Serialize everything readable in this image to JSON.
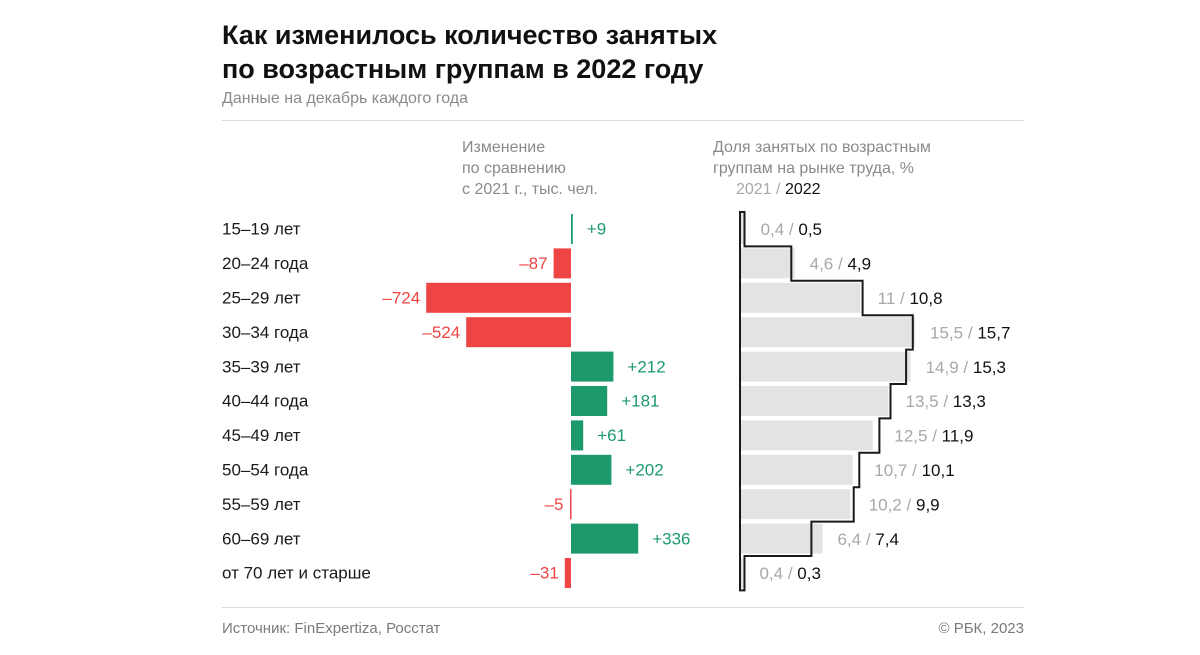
{
  "header": {
    "title_line1": "Как изменилось количество занятых",
    "title_line2": "по возрастным группам в 2022 году",
    "subtitle": "Данные на декабрь каждого года"
  },
  "columns": {
    "change_line1": "Изменение",
    "change_line2": "по сравнению",
    "change_line3": "с 2021 г., тыс. чел.",
    "share_line1": "Доля занятых по возрастным",
    "share_line2": "группам на рынке труда, %",
    "year_2021": "2021",
    "year_sep": " / ",
    "year_2022": "2022"
  },
  "footer": {
    "source": "Источник: FinExpertiza, Росстат",
    "copyright": "© РБК, 2023"
  },
  "colors": {
    "positive": "#1d9a6c",
    "negative": "#ef4444",
    "share_2022_fill": "#e3e3e3",
    "share_2021_line": "#1a1a1a",
    "label_2021": "#a8a8a8"
  },
  "chart_data": [
    {
      "type": "bar",
      "orientation": "horizontal",
      "categories": [
        "15–19 лет",
        "20–24 года",
        "25–29 лет",
        "30–34 года",
        "35–39 лет",
        "40–44 года",
        "45–49 лет",
        "50–54 года",
        "55–59 лет",
        "60–69 лет",
        "от 70 лет и старше"
      ],
      "series": [
        {
          "values": [
            9,
            -87,
            -724,
            -524,
            212,
            181,
            61,
            202,
            -5,
            336,
            -31
          ]
        }
      ],
      "labels": [
        "+9",
        "–87",
        "–724",
        "–524",
        "+212",
        "+181",
        "+61",
        "+202",
        "–5",
        "+336",
        "–31"
      ]
    },
    {
      "type": "bar",
      "orientation": "horizontal",
      "categories": [
        "15–19 лет",
        "20–24 года",
        "25–29 лет",
        "30–34 года",
        "35–39 лет",
        "40–44 года",
        "45–49 лет",
        "50–54 года",
        "55–59 лет",
        "60–69 лет",
        "от 70 лет и старше"
      ],
      "series": [
        {
          "name": "2021",
          "values": [
            0.4,
            4.6,
            11,
            15.5,
            14.9,
            13.5,
            12.5,
            10.7,
            10.2,
            6.4,
            0.4
          ],
          "labels": [
            "0,4",
            "4,6",
            "11",
            "15,5",
            "14,9",
            "13,5",
            "12,5",
            "10,7",
            "10,2",
            "6,4",
            "0,4"
          ]
        },
        {
          "name": "2022",
          "values": [
            0.5,
            4.9,
            10.8,
            15.7,
            15.3,
            13.3,
            11.9,
            10.1,
            9.9,
            7.4,
            0.3
          ],
          "labels": [
            "0,5",
            "4,9",
            "10,8",
            "15,7",
            "15,3",
            "13,3",
            "11,9",
            "10,1",
            "9,9",
            "7,4",
            "0,3"
          ]
        }
      ]
    }
  ]
}
